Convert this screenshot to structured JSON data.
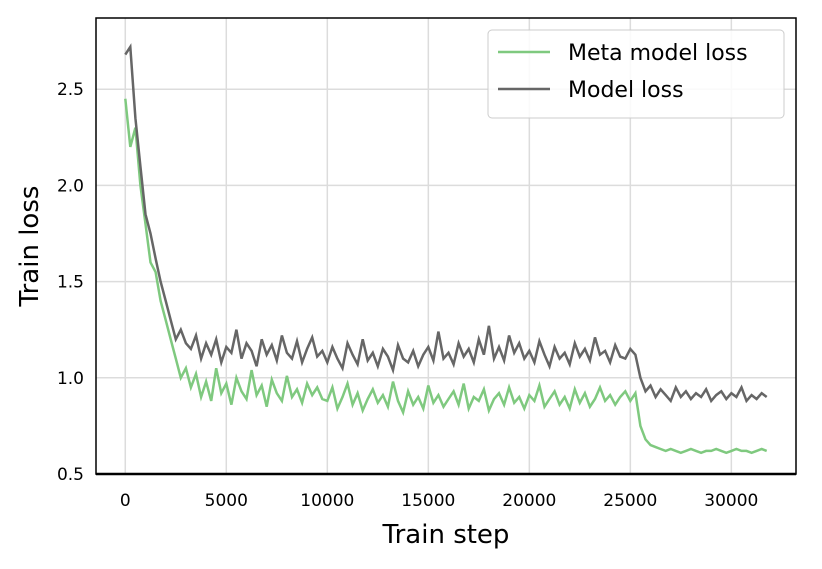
{
  "chart_data": {
    "type": "line",
    "xlabel": "Train step",
    "ylabel": "Train loss",
    "x": [
      0,
      250,
      500,
      750,
      1000,
      1250,
      1500,
      1750,
      2000,
      2250,
      2500,
      2750,
      3000,
      3250,
      3500,
      3750,
      4000,
      4250,
      4500,
      4750,
      5000,
      5250,
      5500,
      5750,
      6000,
      6250,
      6500,
      6750,
      7000,
      7250,
      7500,
      7750,
      8000,
      8250,
      8500,
      8750,
      9000,
      9250,
      9500,
      9750,
      10000,
      10250,
      10500,
      10750,
      11000,
      11250,
      11500,
      11750,
      12000,
      12250,
      12500,
      12750,
      13000,
      13250,
      13500,
      13750,
      14000,
      14250,
      14500,
      14750,
      15000,
      15250,
      15500,
      15750,
      16000,
      16250,
      16500,
      16750,
      17000,
      17250,
      17500,
      17750,
      18000,
      18250,
      18500,
      18750,
      19000,
      19250,
      19500,
      19750,
      20000,
      20250,
      20500,
      20750,
      21000,
      21250,
      21500,
      21750,
      22000,
      22250,
      22500,
      22750,
      23000,
      23250,
      23500,
      23750,
      24000,
      24250,
      24500,
      24750,
      25000,
      25250,
      25500,
      25750,
      26000,
      26250,
      26500,
      26750,
      27000,
      27250,
      27500,
      27750,
      28000,
      28250,
      28500,
      28750,
      29000,
      29250,
      29500,
      29750,
      30000,
      30250,
      30500,
      30750,
      31000,
      31250,
      31500,
      31750
    ],
    "series": [
      {
        "name": "Meta model loss",
        "color": "#7fc97f",
        "values": [
          2.45,
          2.2,
          2.3,
          2.0,
          1.8,
          1.6,
          1.55,
          1.4,
          1.3,
          1.2,
          1.1,
          1.0,
          1.05,
          0.95,
          1.02,
          0.9,
          0.98,
          0.88,
          1.05,
          0.92,
          0.97,
          0.86,
          1.0,
          0.93,
          0.89,
          1.04,
          0.91,
          0.96,
          0.85,
          0.99,
          0.92,
          0.88,
          1.01,
          0.9,
          0.94,
          0.87,
          0.97,
          0.91,
          0.95,
          0.89,
          0.88,
          0.95,
          0.84,
          0.9,
          0.97,
          0.86,
          0.92,
          0.83,
          0.89,
          0.94,
          0.87,
          0.91,
          0.85,
          0.98,
          0.88,
          0.82,
          0.93,
          0.86,
          0.9,
          0.84,
          0.96,
          0.87,
          0.91,
          0.85,
          0.89,
          0.93,
          0.86,
          0.97,
          0.84,
          0.9,
          0.88,
          0.94,
          0.83,
          0.89,
          0.92,
          0.86,
          0.95,
          0.87,
          0.9,
          0.84,
          0.91,
          0.88,
          0.96,
          0.85,
          0.89,
          0.93,
          0.86,
          0.9,
          0.84,
          0.94,
          0.87,
          0.92,
          0.85,
          0.89,
          0.95,
          0.88,
          0.91,
          0.86,
          0.9,
          0.93,
          0.88,
          0.92,
          0.75,
          0.68,
          0.65,
          0.64,
          0.63,
          0.62,
          0.63,
          0.62,
          0.61,
          0.62,
          0.63,
          0.62,
          0.61,
          0.62,
          0.62,
          0.63,
          0.62,
          0.61,
          0.62,
          0.63,
          0.62,
          0.62,
          0.61,
          0.62,
          0.63,
          0.62
        ]
      },
      {
        "name": "Model loss",
        "color": "#666666",
        "values": [
          2.68,
          2.72,
          2.35,
          2.1,
          1.85,
          1.75,
          1.62,
          1.5,
          1.4,
          1.3,
          1.2,
          1.25,
          1.18,
          1.15,
          1.22,
          1.1,
          1.18,
          1.12,
          1.2,
          1.08,
          1.16,
          1.13,
          1.25,
          1.1,
          1.18,
          1.14,
          1.06,
          1.2,
          1.12,
          1.17,
          1.09,
          1.22,
          1.13,
          1.1,
          1.19,
          1.08,
          1.15,
          1.21,
          1.11,
          1.14,
          1.08,
          1.16,
          1.1,
          1.05,
          1.18,
          1.12,
          1.07,
          1.2,
          1.09,
          1.13,
          1.06,
          1.15,
          1.11,
          1.04,
          1.17,
          1.1,
          1.08,
          1.14,
          1.06,
          1.12,
          1.16,
          1.09,
          1.24,
          1.1,
          1.13,
          1.07,
          1.18,
          1.11,
          1.15,
          1.08,
          1.2,
          1.12,
          1.27,
          1.1,
          1.16,
          1.09,
          1.22,
          1.13,
          1.18,
          1.1,
          1.14,
          1.08,
          1.19,
          1.12,
          1.06,
          1.16,
          1.1,
          1.13,
          1.07,
          1.18,
          1.11,
          1.15,
          1.09,
          1.21,
          1.12,
          1.14,
          1.08,
          1.17,
          1.11,
          1.1,
          1.15,
          1.12,
          1.0,
          0.93,
          0.96,
          0.9,
          0.94,
          0.91,
          0.88,
          0.95,
          0.9,
          0.93,
          0.89,
          0.92,
          0.9,
          0.94,
          0.88,
          0.91,
          0.93,
          0.89,
          0.92,
          0.9,
          0.95,
          0.88,
          0.91,
          0.89,
          0.92,
          0.9
        ]
      }
    ],
    "xlim": [
      -1450,
      33200
    ],
    "ylim": [
      0.5,
      2.87
    ],
    "xticks": [
      0,
      5000,
      10000,
      15000,
      20000,
      25000,
      30000
    ],
    "yticks": [
      0.5,
      {
        "value": 1,
        "label": "1.0"
      },
      1.5,
      {
        "value": 2,
        "label": "2.0"
      },
      2.5
    ],
    "grid": true,
    "legend": "upper right"
  }
}
